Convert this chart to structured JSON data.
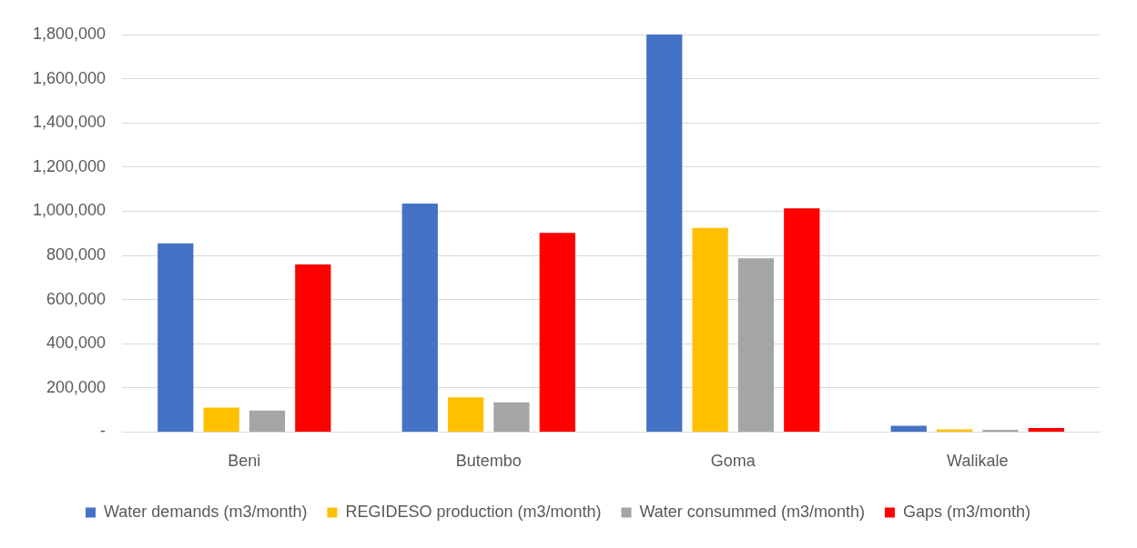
{
  "chart_data": {
    "type": "bar",
    "categories": [
      "Beni",
      "Butembo",
      "Goma",
      "Walikale"
    ],
    "series": [
      {
        "name": "Water demands (m3/month)",
        "color": "#4472c4",
        "values": [
          855000,
          1035000,
          1800000,
          28000
        ]
      },
      {
        "name": "REGIDESO production (m3/month)",
        "color": "#ffc000",
        "values": [
          111000,
          157000,
          925000,
          12000
        ]
      },
      {
        "name": "Water consummed (m3/month)",
        "color": "#a5a5a5",
        "values": [
          97000,
          134000,
          787000,
          10000
        ]
      },
      {
        "name": "Gaps (m3/month)",
        "color": "#ff0000",
        "values": [
          759000,
          902000,
          1013000,
          18000
        ]
      }
    ],
    "ylim": [
      0,
      1800000
    ],
    "yticks": [
      {
        "value": 0,
        "label": "-"
      },
      {
        "value": 200000,
        "label": "200,000"
      },
      {
        "value": 400000,
        "label": "400,000"
      },
      {
        "value": 600000,
        "label": "600,000"
      },
      {
        "value": 800000,
        "label": "800,000"
      },
      {
        "value": 1000000,
        "label": "1,000,000"
      },
      {
        "value": 1200000,
        "label": "1,200,000"
      },
      {
        "value": 1400000,
        "label": "1,400,000"
      },
      {
        "value": 1600000,
        "label": "1,600,000"
      },
      {
        "value": 1800000,
        "label": "1,800,000"
      }
    ],
    "grid": "y",
    "legend": "bottom"
  }
}
